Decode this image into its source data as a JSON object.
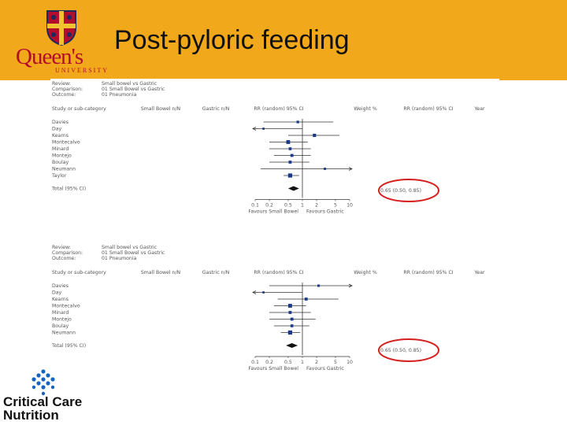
{
  "slide": {
    "title": "Post-pyloric feeding",
    "brand_color": "#f1a81b",
    "queens_color": "#b30d2c"
  },
  "logos": {
    "queens_name": "Queen's",
    "queens_sub": "UNIVERSITY",
    "ccn_line1": "Critical Care",
    "ccn_line2": "Nutrition"
  },
  "forest1": {
    "header": [
      "Review:",
      "Comparison:",
      "Outcome:"
    ],
    "header_vals": [
      "Small bowel vs Gastric",
      "01 Small Bowel vs Gastric",
      "01 Pneumonia"
    ],
    "columns": [
      "Study or sub-category",
      "Small Bowel n/N",
      "Gastric n/N",
      "RR (random) 95% CI",
      "Weight %",
      "RR (random) 95% CI",
      "Year"
    ],
    "studies": [
      {
        "name": "Davies",
        "weight": 0.7,
        "rr": 0.8,
        "lo": 0.15,
        "hi": 4.5
      },
      {
        "name": "Day",
        "weight": 0.4,
        "rr": 0.15,
        "lo": 0.02,
        "hi": 1.0
      },
      {
        "name": "Kearns",
        "weight": 1.2,
        "rr": 1.8,
        "lo": 0.5,
        "hi": 6.1
      },
      {
        "name": "Montecalvo",
        "weight": 1.6,
        "rr": 0.5,
        "lo": 0.2,
        "hi": 1.3
      },
      {
        "name": "Minard",
        "weight": 0.9,
        "rr": 0.55,
        "lo": 0.2,
        "hi": 1.5
      },
      {
        "name": "Montejo",
        "weight": 1.0,
        "rr": 0.6,
        "lo": 0.25,
        "hi": 1.5
      },
      {
        "name": "Boulay",
        "weight": 1.0,
        "rr": 0.55,
        "lo": 0.2,
        "hi": 1.4
      },
      {
        "name": "Neumann",
        "weight": 0.5,
        "rr": 3.0,
        "lo": 0.13,
        "hi": 70.0
      },
      {
        "name": "Taylor",
        "weight": 1.8,
        "rr": 0.55,
        "lo": 0.4,
        "hi": 0.85
      }
    ],
    "total": {
      "rr": 0.65,
      "lo": 0.5,
      "hi": 0.85
    },
    "axis_ticks": [
      "0.1",
      "0.2",
      "0.5",
      "1",
      "2",
      "5",
      "10"
    ],
    "favour_left": "Favours Small Bowel",
    "favour_right": "Favours Gastric"
  },
  "forest2": {
    "header": [
      "Review:",
      "Comparison:",
      "Outcome:"
    ],
    "header_vals": [
      "Small bowel vs Gastric",
      "01 Small Bowel vs Gastric",
      "01 Pneumonia"
    ],
    "columns": [
      "Study or sub-category",
      "Small Bowel n/N",
      "Gastric n/N",
      "RR (random) 95% CI",
      "Weight %",
      "RR (random) 95% CI",
      "Year"
    ],
    "studies": [
      {
        "name": "Davies",
        "weight": 0.6,
        "rr": 2.2,
        "lo": 0.2,
        "hi": 20.0
      },
      {
        "name": "Day",
        "weight": 0.4,
        "rr": 0.15,
        "lo": 0.02,
        "hi": 1.0
      },
      {
        "name": "Kearns",
        "weight": 1.0,
        "rr": 1.2,
        "lo": 0.3,
        "hi": 5.8
      },
      {
        "name": "Montecalvo",
        "weight": 1.6,
        "rr": 0.55,
        "lo": 0.25,
        "hi": 1.2
      },
      {
        "name": "Minard",
        "weight": 1.0,
        "rr": 0.55,
        "lo": 0.2,
        "hi": 1.5
      },
      {
        "name": "Montejo",
        "weight": 1.0,
        "rr": 0.6,
        "lo": 0.2,
        "hi": 1.9
      },
      {
        "name": "Boulay",
        "weight": 0.9,
        "rr": 0.6,
        "lo": 0.25,
        "hi": 1.4
      },
      {
        "name": "Neumann",
        "weight": 1.8,
        "rr": 0.55,
        "lo": 0.35,
        "hi": 0.9
      }
    ],
    "total": {
      "rr": 0.6,
      "lo": 0.45,
      "hi": 0.8
    },
    "axis_ticks": [
      "0.1",
      "0.2",
      "0.5",
      "1",
      "2",
      "5",
      "10"
    ],
    "favour_left": "Favours Small Bowel",
    "favour_right": "Favours Gastric"
  }
}
